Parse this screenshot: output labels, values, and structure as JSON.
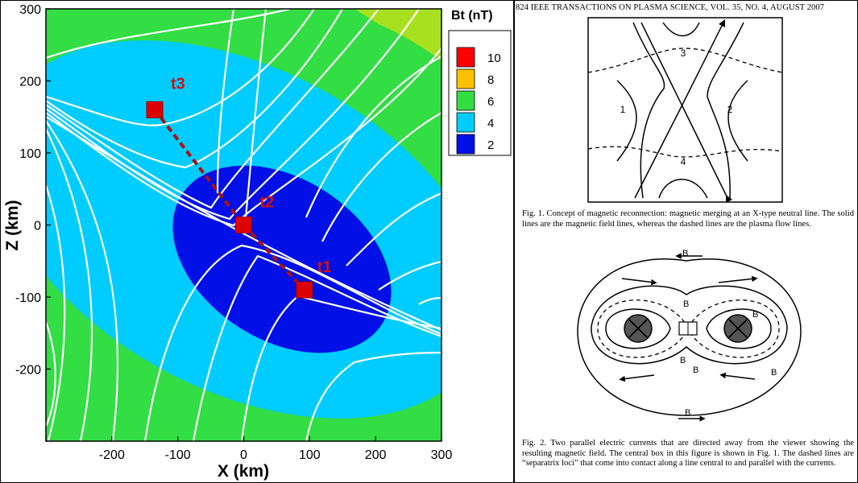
{
  "plot": {
    "xlabel": "X (km)",
    "ylabel": "Z (km)",
    "xlim": [
      -300,
      300
    ],
    "ylim": [
      -300,
      300
    ],
    "x_ticks": [
      "-200",
      "-100",
      "0",
      "100",
      "200",
      "300"
    ],
    "y_ticks": [
      "300",
      "200",
      "100",
      "0",
      "-100",
      "-200"
    ],
    "legend_title": "Bt (nT)",
    "legend_levels": [
      {
        "label": "10",
        "color": "#ff0000"
      },
      {
        "label": "8",
        "color": "#ffc000"
      },
      {
        "label": "6",
        "color": "#33dd44"
      },
      {
        "label": "4",
        "color": "#00ccff"
      },
      {
        "label": "2",
        "color": "#0010e6"
      }
    ],
    "colors": {
      "field_lines": "#ffffff",
      "markers": "#dd0000",
      "trajectory": "#aa1111"
    },
    "markers": [
      {
        "label": "t3",
        "x": -135,
        "z": 160
      },
      {
        "label": "t2",
        "x": 0,
        "z": 0
      },
      {
        "label": "t1",
        "x": 92,
        "z": -90
      }
    ]
  },
  "paper": {
    "running_head": "824      IEEE TRANSACTIONS ON PLASMA SCIENCE, VOL. 35, NO. 4, AUGUST 2007",
    "fig1": {
      "region_labels": [
        "3",
        "1",
        "2",
        "4"
      ],
      "caption": "Fig. 1.    Concept of magnetic reconnection: magnetic merging at an X-type neutral line. The solid lines are the magnetic field lines, whereas the dashed lines are the plasma flow lines."
    },
    "fig2": {
      "field_label": "B",
      "caption": "Fig. 2.    Two parallel electric currents that are directed away from the viewer showing the resulting magnetic field. The central box in this figure is shown in Fig. 1. The dashed lines are “separatrix loci” that come into contact along a line central to and parallel with the currents."
    }
  }
}
